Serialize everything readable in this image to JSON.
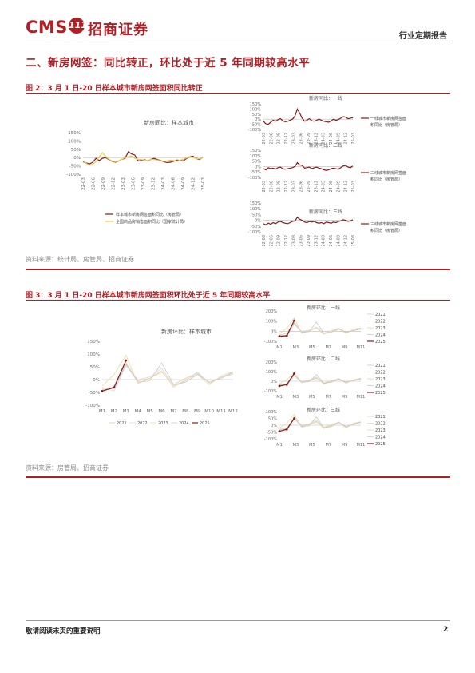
{
  "header": {
    "logo_text": "CMS",
    "logo_badge": "111",
    "logo_cn": "招商证券",
    "report_type": "行业定期报告"
  },
  "section_title": "二、新房网签：同比转正，环比处于近 5 年同期较高水平",
  "fig2": {
    "title": "图 2：3 月 1 日-20 日样本城市新房网签面积同比转正",
    "source": "资料来源：统计局、房管局、招商证券"
  },
  "fig3": {
    "title": "图 3：3 月 1 日-20 日样本城市新房网签面积环比处于近 5 年同期较高水平",
    "source": "资料来源：房管局、招商证券"
  },
  "footer": {
    "disclaimer": "敬请阅读末页的重要说明",
    "page": "2"
  },
  "colors": {
    "brand_red": "#b11f24",
    "series_dark": "#8b1a1a",
    "series_gold": "#f2c94c",
    "y2021": "#e6c9a8",
    "y2022": "#d9d9d9",
    "y2023": "#f0d9a0",
    "y2024": "#c8c8c8",
    "y2025": "#8b1a1a"
  },
  "chart_data": [
    {
      "type": "line",
      "title": "新房同比：样本城市",
      "y_ticks": [
        "150%",
        "100%",
        "50%",
        "0%",
        "-50%",
        "-100%"
      ],
      "ylim": [
        -1.0,
        1.5
      ],
      "x_ticks": [
        "22-03",
        "22-06",
        "22-09",
        "22-12",
        "23-03",
        "23-06",
        "23-09",
        "23-12",
        "24-03",
        "24-06",
        "24-09",
        "24-12",
        "25-03"
      ],
      "series": [
        {
          "name": "样本城市新房网签面积同比（房管局）",
          "values": [
            -0.25,
            -0.32,
            -0.38,
            -0.28,
            -0.05,
            -0.18,
            -0.05,
            0.0,
            -0.12,
            -0.22,
            -0.28,
            -0.2,
            -0.1,
            -0.05,
            0.35,
            0.22,
            0.15,
            -0.2,
            -0.18,
            -0.12,
            -0.2,
            -0.1,
            -0.05,
            -0.12,
            -0.18,
            -0.25,
            -0.3,
            -0.28,
            -0.22,
            -0.15,
            -0.18,
            -0.2,
            -0.05,
            0.05,
            0.08,
            -0.05,
            -0.12,
            0.02
          ]
        },
        {
          "name": "全国商品房销售面积同比（国家统计局）",
          "values": [
            -0.2,
            -0.35,
            -0.45,
            -0.4,
            -0.25,
            0.05,
            0.3,
            0.05,
            -0.1,
            -0.2,
            -0.25,
            -0.2,
            -0.1,
            0.0,
            0.05,
            0.1,
            -0.05,
            -0.1,
            -0.12,
            -0.15,
            -0.18,
            -0.1,
            -0.12,
            -0.15,
            -0.2,
            -0.22,
            -0.2,
            -0.15,
            -0.18,
            -0.2,
            -0.15,
            -0.1,
            -0.02,
            0.05,
            0.0,
            -0.05,
            -0.08,
            0.0
          ]
        }
      ]
    },
    {
      "type": "line",
      "title": "新房同比：一线",
      "y_ticks": [
        "150%",
        "100%",
        "50%",
        "0%",
        "-50%",
        "-100%"
      ],
      "ylim": [
        -1.0,
        1.5
      ],
      "x_ticks": [
        "22-03",
        "22-06",
        "22-09",
        "22-12",
        "23-03",
        "23-06",
        "23-09",
        "23-12",
        "24-03",
        "24-06",
        "24-09",
        "24-12",
        "25-03"
      ],
      "series": [
        {
          "name": "一线城市新房网签面积同比（房管局）",
          "values": [
            -0.2,
            -0.45,
            -0.5,
            -0.3,
            -0.1,
            -0.2,
            -0.05,
            0.05,
            -0.15,
            -0.25,
            -0.2,
            -0.1,
            0.0,
            0.3,
            1.0,
            0.6,
            0.1,
            -0.2,
            -0.1,
            0.05,
            -0.15,
            -0.2,
            -0.1,
            0.0,
            -0.1,
            -0.2,
            -0.25,
            -0.3,
            -0.15,
            0.0,
            -0.1,
            -0.05,
            0.1,
            0.25,
            0.2,
            0.05,
            0.1,
            0.15
          ]
        }
      ]
    },
    {
      "type": "line",
      "title": "新房同比：二线",
      "y_ticks": [
        "150%",
        "100%",
        "50%",
        "0%",
        "-50%",
        "-100%"
      ],
      "ylim": [
        -1.0,
        1.5
      ],
      "x_ticks": [
        "22-03",
        "22-06",
        "22-09",
        "22-12",
        "23-03",
        "23-06",
        "23-09",
        "23-12",
        "24-03",
        "24-06",
        "24-09",
        "24-12",
        "25-03"
      ],
      "series": [
        {
          "name": "二线城市新房网签面积同比（房管局）",
          "values": [
            -0.2,
            -0.3,
            -0.1,
            -0.2,
            -0.15,
            -0.25,
            -0.1,
            -0.05,
            -0.2,
            -0.25,
            -0.2,
            -0.15,
            -0.1,
            0.0,
            0.35,
            0.15,
            0.1,
            -0.15,
            -0.1,
            -0.05,
            -0.2,
            -0.1,
            -0.05,
            -0.15,
            -0.2,
            -0.3,
            -0.35,
            -0.3,
            -0.2,
            -0.15,
            -0.2,
            -0.25,
            -0.1,
            0.05,
            0.1,
            -0.05,
            -0.1,
            0.05
          ]
        }
      ]
    },
    {
      "type": "line",
      "title": "新房同比：三线",
      "y_ticks": [
        "150%",
        "100%",
        "50%",
        "0%",
        "-50%",
        "-100%"
      ],
      "ylim": [
        -1.0,
        1.5
      ],
      "x_ticks": [
        "22-03",
        "22-06",
        "22-09",
        "22-12",
        "23-03",
        "23-06",
        "23-09",
        "23-12",
        "24-03",
        "24-06",
        "24-09",
        "24-12",
        "25-03"
      ],
      "series": [
        {
          "name": "三线城市新房网签面积同比（房管局）",
          "values": [
            -0.3,
            -0.4,
            -0.25,
            -0.35,
            -0.2,
            -0.3,
            -0.15,
            -0.1,
            -0.2,
            -0.25,
            -0.3,
            -0.2,
            -0.1,
            -0.05,
            0.25,
            0.1,
            0.0,
            -0.15,
            -0.2,
            -0.1,
            -0.15,
            -0.1,
            -0.2,
            -0.25,
            -0.2,
            -0.3,
            -0.15,
            -0.2,
            -0.25,
            -0.15,
            -0.2,
            -0.1,
            -0.05,
            0.05,
            0.0,
            -0.1,
            -0.05,
            0.05
          ]
        }
      ]
    },
    {
      "type": "line",
      "title": "新房环比：样本城市",
      "y_ticks": [
        "150%",
        "100%",
        "50%",
        "0%",
        "-50%",
        "-100%"
      ],
      "ylim": [
        -1.0,
        1.5
      ],
      "x_ticks": [
        "M1",
        "M2",
        "M3",
        "M4",
        "M5",
        "M6",
        "M7",
        "M8",
        "M9",
        "M10",
        "M11",
        "M12"
      ],
      "series": [
        {
          "name": "2021",
          "values": [
            -0.35,
            -0.3,
            0.65,
            -0.05,
            0.05,
            0.3,
            -0.2,
            0.05,
            0.25,
            -0.1,
            0.1,
            0.25
          ]
        },
        {
          "name": "2022",
          "values": [
            -0.3,
            -0.45,
            0.55,
            0.0,
            0.1,
            0.45,
            -0.25,
            -0.05,
            0.3,
            -0.15,
            0.1,
            0.2
          ]
        },
        {
          "name": "2023",
          "values": [
            -0.25,
            0.2,
            0.95,
            -0.15,
            0.05,
            0.35,
            -0.3,
            0.0,
            0.2,
            -0.2,
            0.15,
            0.3
          ]
        },
        {
          "name": "2024",
          "values": [
            -0.4,
            -0.35,
            0.6,
            -0.1,
            -0.05,
            0.65,
            -0.2,
            -0.1,
            0.2,
            -0.1,
            0.05,
            0.3
          ]
        },
        {
          "name": "2025",
          "values": [
            -0.45,
            -0.3,
            0.75
          ]
        }
      ]
    },
    {
      "type": "line",
      "title": "新房环比：一线",
      "y_ticks": [
        "200%",
        "100%",
        "0%",
        "-100%"
      ],
      "ylim": [
        -1.0,
        2.0
      ],
      "x_ticks": [
        "M1",
        "M3",
        "M5",
        "M7",
        "M9",
        "M11"
      ],
      "series": [
        {
          "name": "2021",
          "values": [
            -0.4,
            -0.2,
            0.9,
            -0.1,
            0.1,
            0.3,
            -0.2,
            0.05,
            0.3,
            -0.1,
            0.1,
            0.2
          ]
        },
        {
          "name": "2022",
          "values": [
            -0.3,
            -0.5,
            0.7,
            0.0,
            0.1,
            0.4,
            -0.2,
            0.0,
            0.25,
            -0.15,
            0.1,
            0.25
          ]
        },
        {
          "name": "2023",
          "values": [
            -0.25,
            0.3,
            1.3,
            -0.2,
            0.05,
            0.3,
            -0.3,
            0.05,
            0.25,
            -0.2,
            0.2,
            0.35
          ]
        },
        {
          "name": "2024",
          "values": [
            -0.45,
            -0.4,
            0.8,
            -0.1,
            -0.05,
            0.9,
            -0.2,
            -0.1,
            0.2,
            -0.1,
            0.05,
            0.3
          ]
        },
        {
          "name": "2025",
          "values": [
            -0.5,
            -0.45,
            1.05
          ]
        }
      ]
    },
    {
      "type": "line",
      "title": "新房环比：二线",
      "y_ticks": [
        "200%",
        "100%",
        "0%",
        "-100%"
      ],
      "ylim": [
        -1.0,
        2.0
      ],
      "x_ticks": [
        "M1",
        "M3",
        "M5",
        "M7",
        "M9",
        "M11"
      ],
      "series": [
        {
          "name": "2021",
          "values": [
            -0.35,
            -0.3,
            0.7,
            -0.05,
            0.05,
            0.3,
            -0.2,
            0.05,
            0.25,
            -0.1,
            0.1,
            0.25
          ]
        },
        {
          "name": "2022",
          "values": [
            -0.3,
            -0.45,
            0.6,
            0.0,
            0.1,
            0.45,
            -0.25,
            -0.05,
            0.3,
            -0.15,
            0.1,
            0.2
          ]
        },
        {
          "name": "2023",
          "values": [
            -0.25,
            0.15,
            0.9,
            -0.15,
            0.05,
            0.35,
            -0.3,
            0.0,
            0.2,
            -0.2,
            0.15,
            0.3
          ]
        },
        {
          "name": "2024",
          "values": [
            -0.4,
            -0.35,
            0.6,
            -0.1,
            -0.05,
            0.7,
            -0.2,
            -0.1,
            0.2,
            -0.1,
            0.05,
            0.3
          ]
        },
        {
          "name": "2025",
          "values": [
            -0.5,
            -0.35,
            0.8
          ]
        }
      ]
    },
    {
      "type": "line",
      "title": "新房环比：三线",
      "y_ticks": [
        "100%",
        "50%",
        "0%",
        "-50%",
        "-100%"
      ],
      "ylim": [
        -1.0,
        1.0
      ],
      "x_ticks": [
        "M1",
        "M3",
        "M5",
        "M7",
        "M9",
        "M11"
      ],
      "series": [
        {
          "name": "2021",
          "values": [
            -0.3,
            -0.25,
            0.6,
            -0.05,
            0.05,
            0.25,
            -0.15,
            0.05,
            0.2,
            -0.1,
            0.1,
            0.2
          ]
        },
        {
          "name": "2022",
          "values": [
            -0.3,
            -0.4,
            0.5,
            0.0,
            0.1,
            0.4,
            -0.2,
            -0.05,
            0.25,
            -0.15,
            0.1,
            0.2
          ]
        },
        {
          "name": "2023",
          "values": [
            -0.2,
            0.15,
            0.8,
            -0.15,
            0.05,
            0.3,
            -0.25,
            0.0,
            0.2,
            -0.2,
            0.15,
            0.25
          ]
        },
        {
          "name": "2024",
          "values": [
            -0.35,
            -0.3,
            0.5,
            -0.1,
            -0.05,
            0.6,
            -0.2,
            -0.1,
            0.2,
            -0.1,
            0.05,
            0.25
          ]
        },
        {
          "name": "2025",
          "values": [
            -0.45,
            -0.3,
            0.5
          ]
        }
      ]
    }
  ]
}
